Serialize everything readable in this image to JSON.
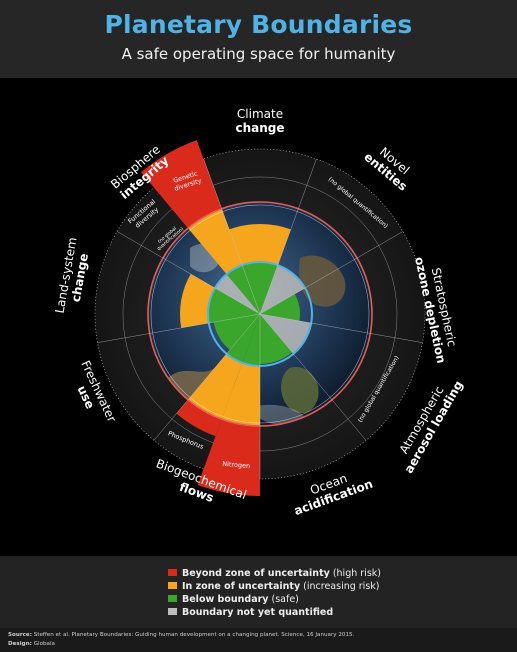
{
  "header": {
    "title": "Planetary Boundaries",
    "subtitle": "A safe operating space for humanity"
  },
  "colors": {
    "beyond": "#d92a1c",
    "uncertainty": "#f5a61c",
    "safe": "#3aa62b",
    "unquantified": "#bdbdbd",
    "boundary_ring": "#4fb3e6",
    "outer_ring": "#e85a57"
  },
  "diagram": {
    "segments": [
      {
        "name": "Climate change",
        "status": "uncertainty"
      },
      {
        "name": "Novel entities",
        "status": "unquantified"
      },
      {
        "name": "Stratospheric ozone depletion",
        "status": "safe"
      },
      {
        "name": "Atmospheric aerosol loading",
        "status": "unquantified"
      },
      {
        "name": "Ocean acidification",
        "status": "safe"
      },
      {
        "name": "Biogeochemical flows",
        "status": "beyond"
      },
      {
        "name": "Freshwater use",
        "status": "safe"
      },
      {
        "name": "Land-system change",
        "status": "uncertainty"
      },
      {
        "name": "Biosphere integrity",
        "status": "beyond"
      }
    ],
    "labels": {
      "climate_1": "Climate",
      "climate_2": "change",
      "novel_1": "Novel",
      "novel_2": "entities",
      "novel_note": "(no global quantification)",
      "ozone_1": "Stratospheric",
      "ozone_2": "ozone depletion",
      "aerosol_1": "Atmospheric",
      "aerosol_2": "aerosol loading",
      "aerosol_note": "(no global quantification)",
      "ocean_1": "Ocean",
      "ocean_2": "acidification",
      "bio_1": "Biogeochemical",
      "bio_2": "flows",
      "phosphorus": "Phosphorus",
      "nitrogen": "Nitrogen",
      "fresh_1": "Freshwater",
      "fresh_2": "use",
      "land_1": "Land-system",
      "land_2": "change",
      "bios_1": "Biosphere",
      "bios_2": "integrity",
      "genetic_1": "Genetic",
      "genetic_2": "diversity",
      "functional_1": "Functional",
      "functional_2": "diversity",
      "func_note_1": "(no global",
      "func_note_2": "quantification)"
    }
  },
  "legend": {
    "items": [
      {
        "strong": "Beyond zone of uncertainty",
        "rest": " (high risk)",
        "color_key": "beyond"
      },
      {
        "strong": "In zone of uncertainty",
        "rest": " (increasing risk)",
        "color_key": "uncertainty"
      },
      {
        "strong": "Below boundary",
        "rest": " (safe)",
        "color_key": "safe"
      },
      {
        "strong": "Boundary not yet quantified",
        "rest": "",
        "color_key": "unquantified"
      }
    ]
  },
  "footer": {
    "source_label": "Source:",
    "source_text": " Steffen et al. Planetary Boundaries: Guiding human development on a changing planet. Science, 16 January 2015.",
    "design_label": "Design:",
    "design_text": " Globaïa"
  }
}
